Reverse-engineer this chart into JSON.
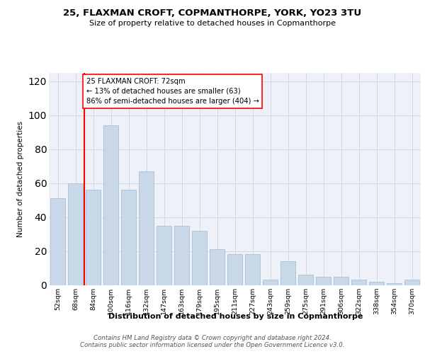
{
  "title1": "25, FLAXMAN CROFT, COPMANTHORPE, YORK, YO23 3TU",
  "title2": "Size of property relative to detached houses in Copmanthorpe",
  "xlabel": "Distribution of detached houses by size in Copmanthorpe",
  "ylabel": "Number of detached properties",
  "categories": [
    "52sqm",
    "68sqm",
    "84sqm",
    "100sqm",
    "116sqm",
    "132sqm",
    "147sqm",
    "163sqm",
    "179sqm",
    "195sqm",
    "211sqm",
    "227sqm",
    "243sqm",
    "259sqm",
    "275sqm",
    "291sqm",
    "306sqm",
    "322sqm",
    "338sqm",
    "354sqm",
    "370sqm"
  ],
  "values": [
    51,
    60,
    56,
    94,
    56,
    67,
    35,
    35,
    32,
    21,
    18,
    18,
    3,
    14,
    6,
    5,
    5,
    3,
    2,
    1,
    3
  ],
  "bar_color": "#c8d8e8",
  "bar_edge_color": "#a0b8d0",
  "grid_color": "#d0d8e8",
  "bg_color": "#eef2f8",
  "vline_x": 1.5,
  "vline_color": "red",
  "annotation_text": "25 FLAXMAN CROFT: 72sqm\n← 13% of detached houses are smaller (63)\n86% of semi-detached houses are larger (404) →",
  "annotation_box_color": "white",
  "annotation_box_edge": "red",
  "footer": "Contains HM Land Registry data © Crown copyright and database right 2024.\nContains public sector information licensed under the Open Government Licence v3.0.",
  "ylim": [
    0,
    125
  ],
  "yticks": [
    0,
    20,
    40,
    60,
    80,
    100,
    120
  ]
}
